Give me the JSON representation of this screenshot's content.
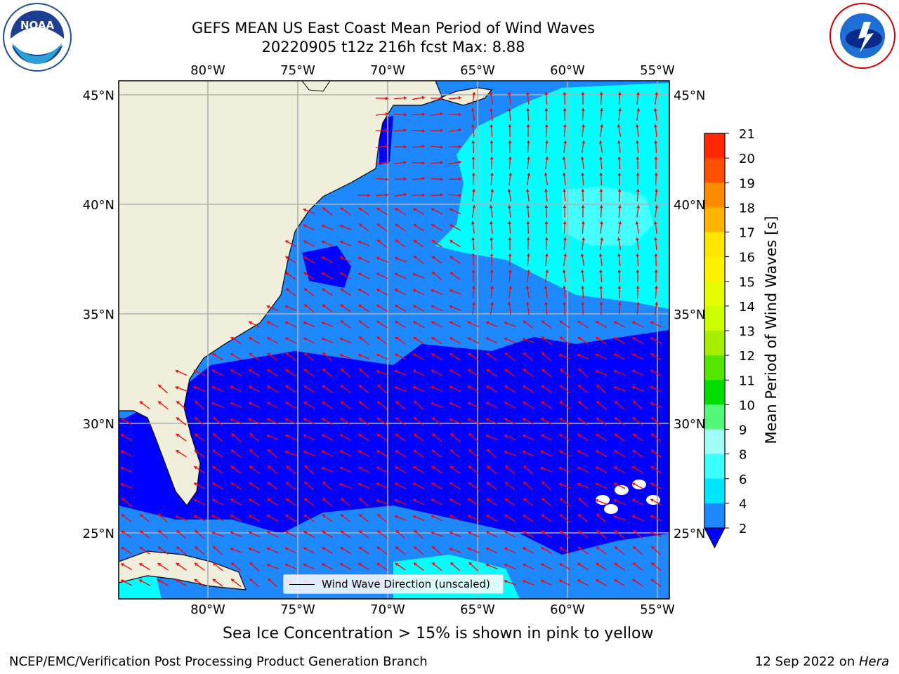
{
  "header": {
    "title_line1": "GEFS MEAN US East Coast Mean Period of Wind Waves",
    "title_line2": "20220905 t12z 216h fcst   Max: 8.88"
  },
  "footer": {
    "caption": "Sea Ice Concentration > 15% is shown in pink to yellow",
    "credit": "NCEP/EMC/Verification Post Processing Product Generation Branch",
    "date_prefix": "12 Sep 2022 on ",
    "machine": "Hera"
  },
  "logos": {
    "left": "noaa-logo",
    "left_text": "NOAA",
    "right": "nws-logo"
  },
  "legend": {
    "label": "Wind Wave Direction (unscaled)"
  },
  "chart_data": {
    "type": "heatmap",
    "title": "GEFS MEAN US East Coast Mean Period of Wind Waves",
    "lon_ticks": [
      "80°W",
      "75°W",
      "70°W",
      "65°W",
      "60°W",
      "55°W"
    ],
    "lat_ticks": [
      "45°N",
      "40°N",
      "35°N",
      "30°N",
      "25°N"
    ],
    "lon_values": [
      -80,
      -75,
      -70,
      -65,
      -60,
      -55
    ],
    "lat_values": [
      45,
      40,
      35,
      30,
      25
    ],
    "colorbar": {
      "label": "Mean Period of Wind Waves [s]",
      "ticks": [
        2,
        4,
        6,
        8,
        9,
        10,
        11,
        12,
        13,
        14,
        15,
        16,
        17,
        18,
        19,
        20,
        21
      ],
      "colors": [
        "#0000ff",
        "#1e88ff",
        "#00e5ff",
        "#3cffff",
        "#9ffff6",
        "#55f77b",
        "#00dd00",
        "#55e600",
        "#a6ee00",
        "#ccff00",
        "#e5ff00",
        "#fff200",
        "#ffe600",
        "#ffb400",
        "#ff8c00",
        "#ff5000",
        "#ff2800",
        "#ff0000"
      ],
      "extend": "min"
    },
    "max_value": 8.88,
    "colors": {
      "land": "#efefdc",
      "low": "#0000ff",
      "mid": "#1e88ff",
      "high": "#00ffff",
      "highest": "#45ffff",
      "arrow": "#ff0000",
      "grid": "#b0b0b0"
    }
  }
}
